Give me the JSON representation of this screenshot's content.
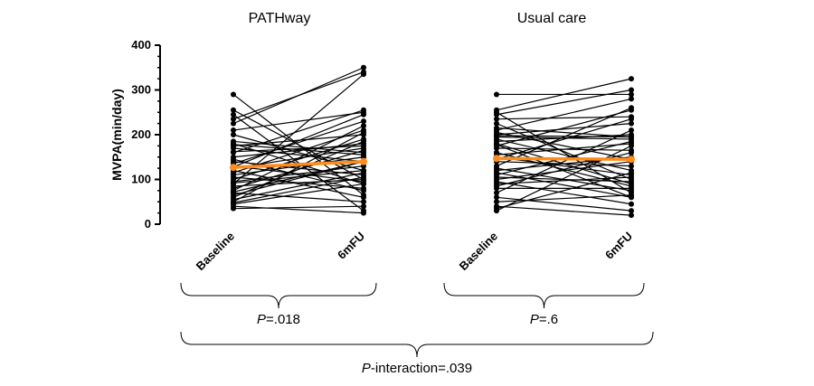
{
  "chart_data": {
    "type": "line",
    "ylabel": "MVPA(min/day)",
    "ylim": [
      0,
      400
    ],
    "yticks": [
      0,
      100,
      200,
      300,
      400
    ],
    "categories": [
      "Baseline",
      "6mFU"
    ],
    "panels": [
      {
        "title": "PATHway",
        "series": [
          {
            "values": [
              290,
              65
            ]
          },
          {
            "values": [
              255,
              100
            ]
          },
          {
            "values": [
              245,
              30
            ]
          },
          {
            "values": [
              235,
              340
            ]
          },
          {
            "values": [
              225,
              350
            ]
          },
          {
            "values": [
              210,
              250
            ]
          },
          {
            "values": [
              200,
              120
            ]
          },
          {
            "values": [
              185,
              160
            ]
          },
          {
            "values": [
              180,
              90
            ]
          },
          {
            "values": [
              175,
              200
            ]
          },
          {
            "values": [
              170,
              140
            ]
          },
          {
            "values": [
              160,
              255
            ]
          },
          {
            "values": [
              150,
              180
            ]
          },
          {
            "values": [
              145,
              75
            ]
          },
          {
            "values": [
              140,
              110
            ]
          },
          {
            "values": [
              135,
              230
            ]
          },
          {
            "values": [
              130,
              95
            ]
          },
          {
            "values": [
              125,
              170
            ]
          },
          {
            "values": [
              120,
              60
            ]
          },
          {
            "values": [
              115,
              210
            ]
          },
          {
            "values": [
              110,
              150
            ]
          },
          {
            "values": [
              105,
              80
            ]
          },
          {
            "values": [
              100,
              190
            ]
          },
          {
            "values": [
              95,
              130
            ]
          },
          {
            "values": [
              90,
              335
            ]
          },
          {
            "values": [
              85,
              100
            ]
          },
          {
            "values": [
              80,
              165
            ]
          },
          {
            "values": [
              75,
              220
            ]
          },
          {
            "values": [
              70,
              50
            ]
          },
          {
            "values": [
              65,
              140
            ]
          },
          {
            "values": [
              60,
              185
            ]
          },
          {
            "values": [
              55,
              115
            ]
          },
          {
            "values": [
              50,
              205
            ]
          },
          {
            "values": [
              45,
              90
            ]
          },
          {
            "values": [
              40,
              25
            ]
          },
          {
            "values": [
              35,
              40
            ]
          },
          {
            "values": [
              178,
              155
            ]
          },
          {
            "values": [
              162,
              175
            ]
          },
          {
            "values": [
              128,
              245
            ]
          },
          {
            "values": [
              92,
              120
            ]
          },
          {
            "values": [
              72,
              140
            ]
          },
          {
            "values": [
              48,
              105
            ]
          }
        ],
        "mean": [
          127,
          140
        ],
        "p_prefix": "P",
        "p_text": "=.018"
      },
      {
        "title": "Usual care",
        "series": [
          {
            "values": [
              290,
              290
            ]
          },
          {
            "values": [
              255,
              325
            ]
          },
          {
            "values": [
              250,
              70
            ]
          },
          {
            "values": [
              245,
              300
            ]
          },
          {
            "values": [
              235,
              240
            ]
          },
          {
            "values": [
              225,
              100
            ]
          },
          {
            "values": [
              215,
              195
            ]
          },
          {
            "values": [
              210,
              280
            ]
          },
          {
            "values": [
              205,
              145
            ]
          },
          {
            "values": [
              200,
              225
            ]
          },
          {
            "values": [
              195,
              190
            ]
          },
          {
            "values": [
              190,
              120
            ]
          },
          {
            "values": [
              185,
              200
            ]
          },
          {
            "values": [
              180,
              90
            ]
          },
          {
            "values": [
              175,
              255
            ]
          },
          {
            "values": [
              170,
              165
            ]
          },
          {
            "values": [
              160,
              85
            ]
          },
          {
            "values": [
              155,
              180
            ]
          },
          {
            "values": [
              150,
              110
            ]
          },
          {
            "values": [
              140,
              130
            ]
          },
          {
            "values": [
              130,
              260
            ]
          },
          {
            "values": [
              125,
              75
            ]
          },
          {
            "values": [
              120,
              150
            ]
          },
          {
            "values": [
              115,
              60
            ]
          },
          {
            "values": [
              110,
              185
            ]
          },
          {
            "values": [
              105,
              95
            ]
          },
          {
            "values": [
              100,
              140
            ]
          },
          {
            "values": [
              95,
              45
            ]
          },
          {
            "values": [
              90,
              105
            ]
          },
          {
            "values": [
              85,
              160
            ]
          },
          {
            "values": [
              80,
              80
            ]
          },
          {
            "values": [
              70,
              210
            ]
          },
          {
            "values": [
              60,
              30
            ]
          },
          {
            "values": [
              50,
              65
            ]
          },
          {
            "values": [
              40,
              20
            ]
          },
          {
            "values": [
              35,
              115
            ]
          },
          {
            "values": [
              30,
              175
            ]
          },
          {
            "values": [
              198,
              195
            ]
          },
          {
            "values": [
              178,
              60
            ]
          },
          {
            "values": [
              145,
              235
            ]
          }
        ],
        "mean": [
          147,
          145
        ],
        "p_prefix": "P",
        "p_text": "=.6"
      }
    ],
    "interaction": {
      "p_prefix": "P",
      "p_text": "-interaction=.039"
    },
    "colors": {
      "series": "#000000",
      "mean": "#ff8c1a"
    }
  }
}
